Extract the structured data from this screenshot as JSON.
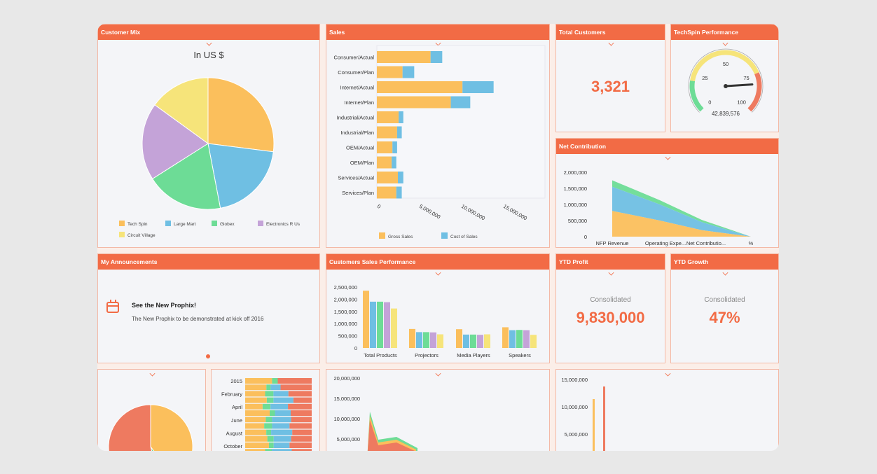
{
  "colors": {
    "accent": "#f26b45",
    "orange": "#fbbf5c",
    "blue": "#6fbfe3",
    "green": "#6ddc96",
    "purple": "#c4a3d8",
    "yellow": "#f6e47a",
    "red": "#ee7a60"
  },
  "panels": {
    "customer_mix": "Customer Mix",
    "sales": "Sales",
    "total_customers": "Total Customers",
    "techspin_performance": "TechSpin Performance",
    "net_contribution": "Net Contribution",
    "my_announcements": "My Announcements",
    "customers_sales_performance": "Customers Sales Performance",
    "ytd_profit": "YTD Profit",
    "ytd_growth": "YTD Growth"
  },
  "customer_mix": {
    "subtitle": "In US $",
    "legend": [
      "Tech Spin",
      "Large Mart",
      "Globex",
      "Electronics R Us",
      "Circuit Village"
    ]
  },
  "total_customers": {
    "value": "3,321"
  },
  "techspin": {
    "ticks": [
      "0",
      "25",
      "50",
      "75",
      "100"
    ],
    "readout": "42,839,576",
    "needle_fraction": 0.82
  },
  "announcement": {
    "title": "See the New Prophix!",
    "text": "The New Prophix to be demonstrated at kick off 2016"
  },
  "ytd_profit": {
    "label": "Consolidated",
    "value": "9,830,000"
  },
  "ytd_growth": {
    "label": "Consolidated",
    "value": "47%"
  },
  "chart_data": [
    {
      "id": "customer_mix",
      "type": "pie",
      "labels": [
        "Tech Spin",
        "Large Mart",
        "Globex",
        "Electronics R Us",
        "Circuit Village"
      ],
      "values": [
        27,
        20,
        19,
        19,
        15
      ]
    },
    {
      "id": "sales",
      "type": "bar",
      "orientation": "horizontal",
      "stacked": true,
      "categories": [
        "Consumer/Actual",
        "Consumer/Plan",
        "Internet/Actual",
        "Internet/Plan",
        "Industrial/Actual",
        "Industrial/Plan",
        "OEM/Actual",
        "OEM/Plan",
        "Services/Actual",
        "Services/Plan"
      ],
      "series": [
        {
          "name": "Gross Sales",
          "values": [
            6900000,
            3300000,
            11000000,
            9500000,
            2800000,
            2600000,
            2000000,
            1900000,
            2700000,
            2500000
          ]
        },
        {
          "name": "Cost of Sales",
          "values": [
            1500000,
            1500000,
            4000000,
            2500000,
            600000,
            600000,
            600000,
            600000,
            700000,
            700000
          ]
        }
      ],
      "xticks": [
        "0",
        "5,000,000",
        "10,000,000",
        "15,000,000"
      ],
      "xlim": [
        0,
        18000000
      ]
    },
    {
      "id": "net_contribution",
      "type": "area",
      "categories": [
        "NFP Revenue",
        "Operating Expe...",
        "Net Contributio...",
        "%"
      ],
      "yticks": [
        "0",
        "500,000",
        "1,000,000",
        "1,500,000",
        "2,000,000"
      ],
      "ylim": [
        0,
        2000000
      ],
      "series": [
        {
          "values": [
            800000,
            500000,
            200000,
            0
          ]
        },
        {
          "values": [
            750000,
            500000,
            250000,
            0
          ]
        },
        {
          "values": [
            200000,
            130000,
            70000,
            0
          ]
        }
      ]
    },
    {
      "id": "customers_sales_performance",
      "type": "bar",
      "categories": [
        "Total Products",
        "Projectors",
        "Media Players",
        "Speakers"
      ],
      "yticks": [
        "0",
        "500,000",
        "1,000,000",
        "1,500,000",
        "2,000,000",
        "2,500,000"
      ],
      "ylim": [
        0,
        2500000
      ],
      "series": [
        {
          "values": [
            2350000,
            780000,
            770000,
            850000
          ]
        },
        {
          "values": [
            1900000,
            650000,
            550000,
            730000
          ]
        },
        {
          "values": [
            1900000,
            650000,
            550000,
            740000
          ]
        },
        {
          "values": [
            1880000,
            640000,
            540000,
            730000
          ]
        },
        {
          "values": [
            1620000,
            560000,
            560000,
            540000
          ]
        }
      ]
    },
    {
      "id": "monthly_stacked",
      "type": "bar",
      "orientation": "horizontal",
      "stacked": true,
      "categories": [
        "2015",
        "February",
        "April",
        "June",
        "August",
        "October"
      ]
    },
    {
      "id": "bottom_area",
      "type": "area",
      "yticks": [
        "5,000,000",
        "10,000,000",
        "15,000,000",
        "20,000,000"
      ]
    },
    {
      "id": "bottom_bars",
      "type": "bar",
      "yticks": [
        "5,000,000",
        "10,000,000",
        "15,000,000"
      ]
    }
  ]
}
